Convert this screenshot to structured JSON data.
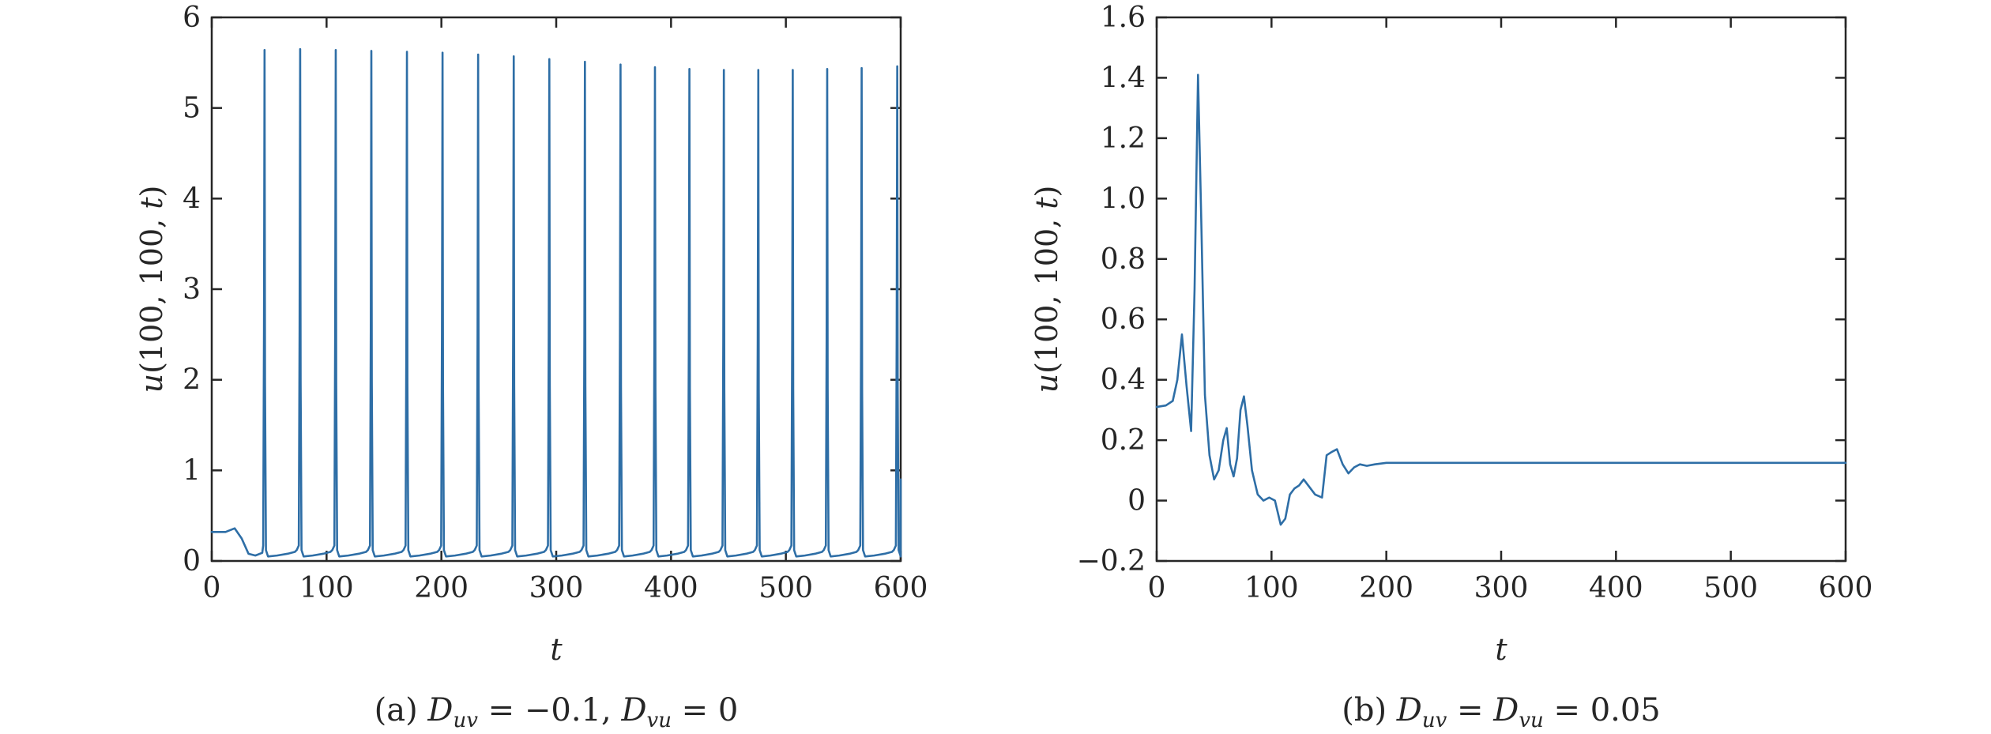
{
  "chart_data": [
    {
      "type": "line",
      "caption": "(a) Duv = −0.1, Dvu = 0",
      "caption_parts": {
        "prefix": "(a) ",
        "d1": "D",
        "s1": "uv",
        "mid": " = −0.1, ",
        "d2": "D",
        "s2": "vu",
        "suffix": " = 0"
      },
      "xlabel": "t",
      "ylabel": "u(100, 100, t)",
      "xlim": [
        0,
        600
      ],
      "ylim": [
        0,
        6
      ],
      "xticks": [
        0,
        100,
        200,
        300,
        400,
        500,
        600
      ],
      "yticks": [
        0,
        1,
        2,
        3,
        4,
        5,
        6
      ],
      "grid": false,
      "series_color": "#2e6ea6",
      "series": [
        {
          "kind": "spike_train",
          "initial": [
            [
              0,
              0.32
            ],
            [
              12,
              0.32
            ],
            [
              20,
              0.36
            ],
            [
              26,
              0.25
            ],
            [
              32,
              0.08
            ],
            [
              38,
              0.06
            ],
            [
              44,
              0.09
            ]
          ],
          "spike_times": [
            46,
            77,
            108,
            139,
            170,
            201,
            232,
            263,
            294,
            325,
            356,
            386,
            416,
            446,
            476,
            506,
            536,
            566,
            597
          ],
          "spike_peaks": [
            5.64,
            5.65,
            5.64,
            5.63,
            5.62,
            5.61,
            5.59,
            5.57,
            5.54,
            5.51,
            5.48,
            5.45,
            5.43,
            5.42,
            5.42,
            5.42,
            5.43,
            5.44,
            5.46
          ],
          "baseline_min": 0.05,
          "baseline_before_spike": 0.12
        }
      ]
    },
    {
      "type": "line",
      "caption": "(b) Duv = Dvu = 0.05",
      "caption_parts": {
        "prefix": "(b) ",
        "d1": "D",
        "s1": "uv",
        "mid": " = ",
        "d2": "D",
        "s2": "vu",
        "suffix": " = 0.05"
      },
      "xlabel": "t",
      "ylabel": "u(100, 100, t)",
      "xlim": [
        0,
        600
      ],
      "ylim": [
        -0.2,
        1.6
      ],
      "xticks": [
        0,
        100,
        200,
        300,
        400,
        500,
        600
      ],
      "yticks": [
        -0.2,
        0,
        0.2,
        0.4,
        0.6,
        0.8,
        1.0,
        1.2,
        1.4,
        1.6
      ],
      "ytick_labels": [
        "−0.2",
        "0",
        "0.2",
        "0.4",
        "0.6",
        "0.8",
        "1.0",
        "1.2",
        "1.4",
        "1.6"
      ],
      "grid": false,
      "series_color": "#2e6ea6",
      "series": [
        {
          "kind": "points",
          "points": [
            [
              0,
              0.31
            ],
            [
              8,
              0.315
            ],
            [
              14,
              0.33
            ],
            [
              18,
              0.4
            ],
            [
              22,
              0.55
            ],
            [
              26,
              0.38
            ],
            [
              30,
              0.23
            ],
            [
              33,
              0.7
            ],
            [
              36,
              1.41
            ],
            [
              39,
              0.9
            ],
            [
              42,
              0.35
            ],
            [
              46,
              0.15
            ],
            [
              50,
              0.07
            ],
            [
              54,
              0.1
            ],
            [
              58,
              0.2
            ],
            [
              61,
              0.24
            ],
            [
              64,
              0.12
            ],
            [
              67,
              0.08
            ],
            [
              70,
              0.14
            ],
            [
              73,
              0.3
            ],
            [
              76,
              0.345
            ],
            [
              79,
              0.25
            ],
            [
              83,
              0.1
            ],
            [
              88,
              0.02
            ],
            [
              93,
              0.0
            ],
            [
              98,
              0.01
            ],
            [
              103,
              0.0
            ],
            [
              108,
              -0.08
            ],
            [
              112,
              -0.06
            ],
            [
              116,
              0.02
            ],
            [
              120,
              0.04
            ],
            [
              124,
              0.05
            ],
            [
              128,
              0.07
            ],
            [
              132,
              0.05
            ],
            [
              138,
              0.02
            ],
            [
              144,
              0.01
            ],
            [
              148,
              0.15
            ],
            [
              152,
              0.16
            ],
            [
              157,
              0.17
            ],
            [
              162,
              0.12
            ],
            [
              167,
              0.09
            ],
            [
              172,
              0.11
            ],
            [
              177,
              0.12
            ],
            [
              183,
              0.115
            ],
            [
              190,
              0.12
            ],
            [
              200,
              0.125
            ],
            [
              220,
              0.125
            ],
            [
              260,
              0.125
            ],
            [
              300,
              0.125
            ],
            [
              400,
              0.125
            ],
            [
              500,
              0.125
            ],
            [
              600,
              0.125
            ]
          ]
        }
      ]
    }
  ]
}
